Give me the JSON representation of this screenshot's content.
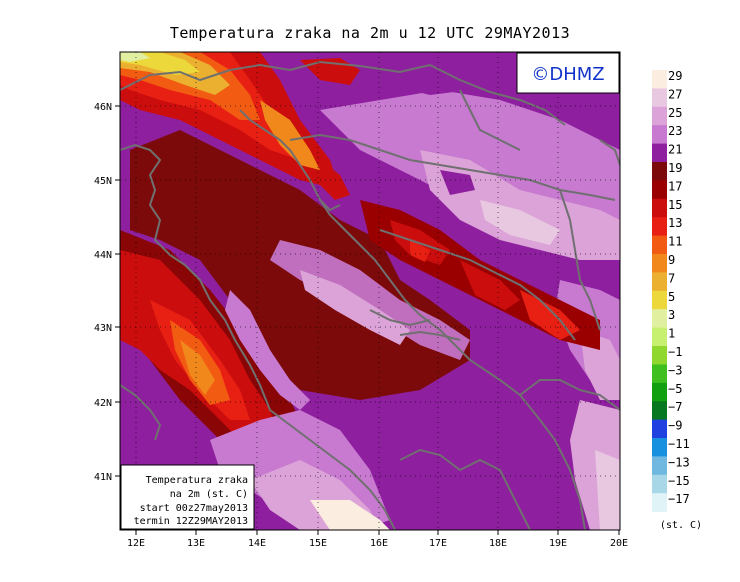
{
  "title": "Temperatura zraka na 2m u 12 UTC 29MAY2013",
  "logo_text": "©DHMZ",
  "info_box": {
    "line1": "Temperatura zraka",
    "line2": "na 2m (st. C)",
    "line3": "start 00z27may2013",
    "line4": "termin 12Z29MAY2013"
  },
  "axes": {
    "lon_ticks": [
      "12E",
      "13E",
      "14E",
      "15E",
      "16E",
      "17E",
      "18E",
      "19E",
      "20E"
    ],
    "lat_ticks": [
      "46N",
      "45N",
      "44N",
      "43N",
      "42N",
      "41N"
    ]
  },
  "colorbar": {
    "unit_label": "(st. C)",
    "levels": [
      "29",
      "27",
      "25",
      "23",
      "21",
      "19",
      "17",
      "15",
      "13",
      "11",
      "9",
      "7",
      "5",
      "3",
      "1",
      "−1",
      "−3",
      "−5",
      "−7",
      "−9",
      "−11",
      "−13",
      "−15",
      "−17"
    ],
    "colors": [
      "#fbeee0",
      "#e8c8e0",
      "#dca3d8",
      "#c77ad0",
      "#8e1f9e",
      "#7d0a0a",
      "#9b0000",
      "#cc0d0d",
      "#e82014",
      "#f25b12",
      "#f0881c",
      "#ecb030",
      "#ecd83a",
      "#e0f0a0",
      "#c8f070",
      "#90d830",
      "#40c020",
      "#10a010",
      "#087820",
      "#2040e0",
      "#1890e0",
      "#70b8e0",
      "#a8d8e8",
      "#e0f4f8"
    ]
  }
}
